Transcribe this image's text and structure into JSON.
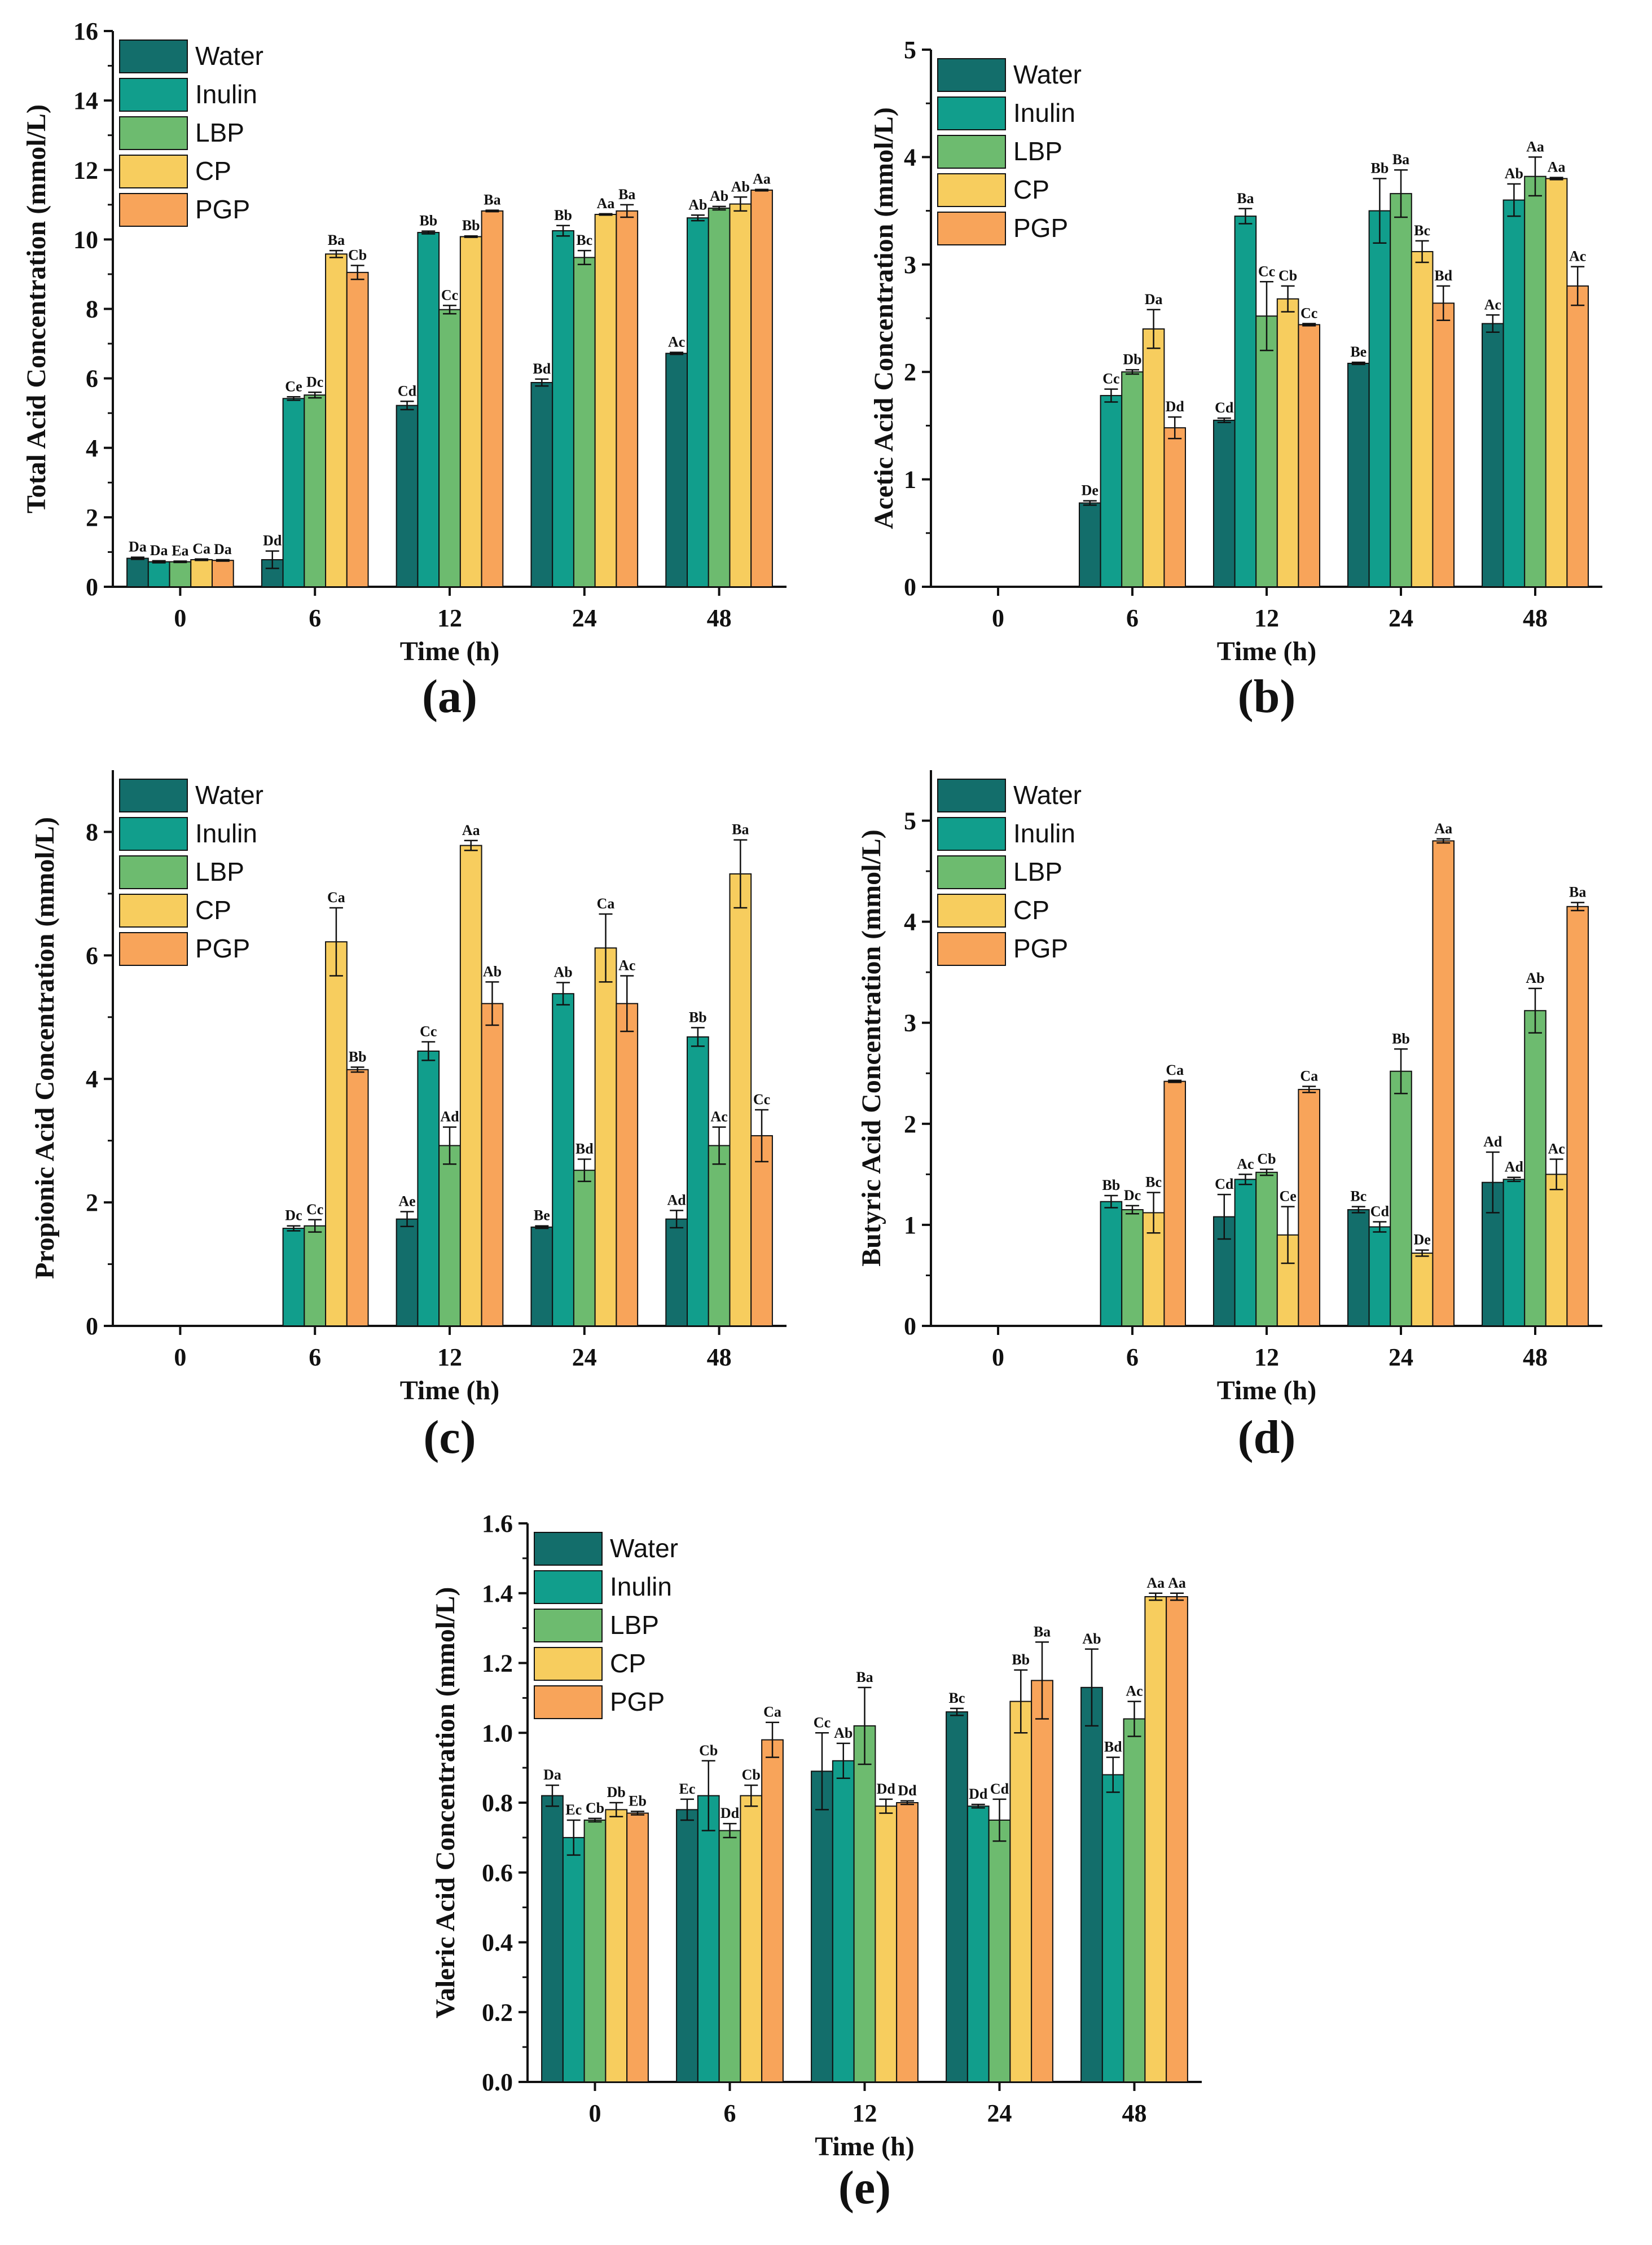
{
  "figure": {
    "colors": {
      "Water": "#136e6b",
      "Inulin": "#119e8c",
      "LBP": "#6dbb6f",
      "CP": "#f7cd5e",
      "PGP": "#f8a45a"
    }
  },
  "chart_data": [
    {
      "type": "bar",
      "panel": "(a)",
      "xlabel": "Time (h)",
      "ylabel": "Total Acid Concentration (mmol/L)",
      "ylim": [
        0,
        16
      ],
      "yticks": [
        0,
        2,
        4,
        6,
        8,
        10,
        12,
        14,
        16
      ],
      "legend_position": "top-left",
      "categories": [
        "0",
        "6",
        "12",
        "24",
        "48"
      ],
      "series": [
        {
          "name": "Water",
          "values": [
            0.82,
            0.78,
            5.22,
            5.88,
            6.72
          ],
          "errors": [
            0.03,
            0.25,
            0.12,
            0.1,
            0.03
          ],
          "labels": [
            "Da",
            "Dd",
            "Cd",
            "Bd",
            "Ac"
          ]
        },
        {
          "name": "Inulin",
          "values": [
            0.72,
            5.42,
            10.2,
            10.25,
            10.62
          ],
          "errors": [
            0.03,
            0.05,
            0.04,
            0.15,
            0.08
          ],
          "labels": [
            "Da",
            "Ce",
            "Bb",
            "Bb",
            "Ab"
          ]
        },
        {
          "name": "LBP",
          "values": [
            0.72,
            5.52,
            7.98,
            9.48,
            10.9
          ],
          "errors": [
            0.02,
            0.08,
            0.12,
            0.2,
            0.05
          ],
          "labels": [
            "Ea",
            "Dc",
            "Cc",
            "Bc",
            "Ab"
          ]
        },
        {
          "name": "CP",
          "values": [
            0.78,
            9.58,
            10.08,
            10.72,
            11.02
          ],
          "errors": [
            0.02,
            0.1,
            0.02,
            0.02,
            0.2
          ],
          "labels": [
            "Ca",
            "Ba",
            "Bb",
            "Aa",
            "Ab"
          ]
        },
        {
          "name": "PGP",
          "values": [
            0.76,
            9.05,
            10.82,
            10.82,
            11.42
          ],
          "errors": [
            0.02,
            0.2,
            0.02,
            0.18,
            0.02
          ],
          "labels": [
            "Da",
            "Cb",
            "Ba",
            "Ba",
            "Aa"
          ]
        }
      ]
    },
    {
      "type": "bar",
      "panel": "(b)",
      "xlabel": "Time (h)",
      "ylabel": "Acetic Acid Concentration (mmol/L)",
      "ylim": [
        0,
        5
      ],
      "yticks": [
        0,
        1,
        2,
        3,
        4,
        5
      ],
      "legend_position": "top-left",
      "categories": [
        "0",
        "6",
        "12",
        "24",
        "48"
      ],
      "series": [
        {
          "name": "Water",
          "values": [
            null,
            0.78,
            1.55,
            2.08,
            2.45
          ],
          "errors": [
            0,
            0.02,
            0.02,
            0.01,
            0.08
          ],
          "labels": [
            "",
            "De",
            "Cd",
            "Be",
            "Ac"
          ]
        },
        {
          "name": "Inulin",
          "values": [
            null,
            1.78,
            3.45,
            3.5,
            3.6
          ],
          "errors": [
            0,
            0.06,
            0.07,
            0.3,
            0.15
          ],
          "labels": [
            "",
            "Cc",
            "Ba",
            "Bb",
            "Ab"
          ]
        },
        {
          "name": "LBP",
          "values": [
            null,
            2.0,
            2.52,
            3.66,
            3.82
          ],
          "errors": [
            0,
            0.02,
            0.32,
            0.22,
            0.18
          ],
          "labels": [
            "",
            "Db",
            "Cc",
            "Ba",
            "Aa"
          ]
        },
        {
          "name": "CP",
          "values": [
            null,
            2.4,
            2.68,
            3.12,
            3.8
          ],
          "errors": [
            0,
            0.18,
            0.12,
            0.1,
            0.01
          ],
          "labels": [
            "",
            "Da",
            "Cb",
            "Bc",
            "Aa"
          ]
        },
        {
          "name": "PGP",
          "values": [
            null,
            1.48,
            2.44,
            2.64,
            2.8
          ],
          "errors": [
            0,
            0.1,
            0.01,
            0.16,
            0.18
          ],
          "labels": [
            "",
            "Dd",
            "Cc",
            "Bd",
            "Ac"
          ]
        }
      ]
    },
    {
      "type": "bar",
      "panel": "(c)",
      "xlabel": "Time (h)",
      "ylabel": "Propionic Acid Concentration (mmol/L)",
      "ylim": [
        0,
        9
      ],
      "yticks": [
        0,
        2,
        4,
        6,
        8
      ],
      "legend_position": "top-left",
      "categories": [
        "0",
        "6",
        "12",
        "24",
        "48"
      ],
      "series": [
        {
          "name": "Water",
          "values": [
            null,
            null,
            1.73,
            1.6,
            1.73
          ],
          "errors": [
            0,
            0,
            0.12,
            0.02,
            0.14
          ],
          "labels": [
            "",
            "",
            "Ae",
            "Be",
            "Ad"
          ]
        },
        {
          "name": "Inulin",
          "values": [
            null,
            1.58,
            4.45,
            5.38,
            4.68
          ],
          "errors": [
            0,
            0.04,
            0.15,
            0.18,
            0.15
          ],
          "labels": [
            "",
            "Dc",
            "Cc",
            "Ab",
            "Bb"
          ]
        },
        {
          "name": "LBP",
          "values": [
            null,
            1.62,
            2.92,
            2.52,
            2.92
          ],
          "errors": [
            0,
            0.1,
            0.3,
            0.18,
            0.3
          ],
          "labels": [
            "",
            "Cc",
            "Ad",
            "Bd",
            "Ac"
          ]
        },
        {
          "name": "CP",
          "values": [
            null,
            6.22,
            7.78,
            6.12,
            7.32
          ],
          "errors": [
            0,
            0.55,
            0.08,
            0.55,
            0.55
          ],
          "labels": [
            "",
            "Ca",
            "Aa",
            "Ca",
            "Ba"
          ]
        },
        {
          "name": "PGP",
          "values": [
            null,
            4.15,
            5.22,
            5.22,
            3.08
          ],
          "errors": [
            0,
            0.04,
            0.35,
            0.45,
            0.42
          ],
          "labels": [
            "",
            "Bb",
            "Ab",
            "Ac",
            "Cc"
          ]
        }
      ]
    },
    {
      "type": "bar",
      "panel": "(d)",
      "xlabel": "Time (h)",
      "ylabel": "Butyric Acid Concentration (mmol/L)",
      "ylim": [
        0,
        5.5
      ],
      "yticks": [
        0,
        1,
        2,
        3,
        4,
        5
      ],
      "legend_position": "top-left",
      "categories": [
        "0",
        "6",
        "12",
        "24",
        "48"
      ],
      "series": [
        {
          "name": "Water",
          "values": [
            null,
            null,
            1.08,
            1.15,
            1.42
          ],
          "errors": [
            0,
            0,
            0.22,
            0.03,
            0.3
          ],
          "labels": [
            "",
            "",
            "Cd",
            "Bc",
            "Ad"
          ]
        },
        {
          "name": "Inulin",
          "values": [
            null,
            1.23,
            1.45,
            0.98,
            1.45
          ],
          "errors": [
            0,
            0.06,
            0.05,
            0.05,
            0.02
          ],
          "labels": [
            "",
            "Bb",
            "Ac",
            "Cd",
            "Ad"
          ]
        },
        {
          "name": "LBP",
          "values": [
            null,
            1.15,
            1.52,
            2.52,
            3.12
          ],
          "errors": [
            0,
            0.04,
            0.03,
            0.22,
            0.22
          ],
          "labels": [
            "",
            "Dc",
            "Cb",
            "Bb",
            "Ab"
          ]
        },
        {
          "name": "CP",
          "values": [
            null,
            1.12,
            0.9,
            0.72,
            1.5
          ],
          "errors": [
            0,
            0.2,
            0.28,
            0.03,
            0.15
          ],
          "labels": [
            "",
            "Bc",
            "Ce",
            "De",
            "Ac"
          ]
        },
        {
          "name": "PGP",
          "values": [
            null,
            2.42,
            2.34,
            4.8,
            4.15
          ],
          "errors": [
            0,
            0.01,
            0.03,
            0.02,
            0.04
          ],
          "labels": [
            "",
            "Ca",
            "Ca",
            "Aa",
            "Ba"
          ]
        }
      ]
    },
    {
      "type": "bar",
      "panel": "(e)",
      "xlabel": "Time (h)",
      "ylabel": "Valeric Acid Concentration (mmol/L)",
      "ylim": [
        0,
        1.6
      ],
      "yticks": [
        0.0,
        0.2,
        0.4,
        0.6,
        0.8,
        1.0,
        1.2,
        1.4,
        1.6
      ],
      "legend_position": "top-left",
      "categories": [
        "0",
        "6",
        "12",
        "24",
        "48"
      ],
      "series": [
        {
          "name": "Water",
          "values": [
            0.82,
            0.78,
            0.89,
            1.06,
            1.13
          ],
          "errors": [
            0.03,
            0.03,
            0.11,
            0.01,
            0.11
          ],
          "labels": [
            "Da",
            "Ec",
            "Cc",
            "Bc",
            "Ab"
          ]
        },
        {
          "name": "Inulin",
          "values": [
            0.7,
            0.82,
            0.92,
            0.79,
            0.88
          ],
          "errors": [
            0.05,
            0.1,
            0.05,
            0.005,
            0.05
          ],
          "labels": [
            "Ec",
            "Cb",
            "Ab",
            "Dd",
            "Bd"
          ]
        },
        {
          "name": "LBP",
          "values": [
            0.75,
            0.72,
            1.02,
            0.75,
            1.04
          ],
          "errors": [
            0.005,
            0.02,
            0.11,
            0.06,
            0.05
          ],
          "labels": [
            "Cb",
            "Dd",
            "Ba",
            "Cd",
            "Ac"
          ]
        },
        {
          "name": "CP",
          "values": [
            0.78,
            0.82,
            0.79,
            1.09,
            1.39
          ],
          "errors": [
            0.02,
            0.03,
            0.02,
            0.09,
            0.01
          ],
          "labels": [
            "Db",
            "Cb",
            "Dd",
            "Bb",
            "Aa"
          ]
        },
        {
          "name": "PGP",
          "values": [
            0.77,
            0.98,
            0.8,
            1.15,
            1.39
          ],
          "errors": [
            0.005,
            0.05,
            0.005,
            0.11,
            0.01
          ],
          "labels": [
            "Eb",
            "Ca",
            "Dd",
            "Ba",
            "Aa"
          ]
        }
      ]
    }
  ]
}
